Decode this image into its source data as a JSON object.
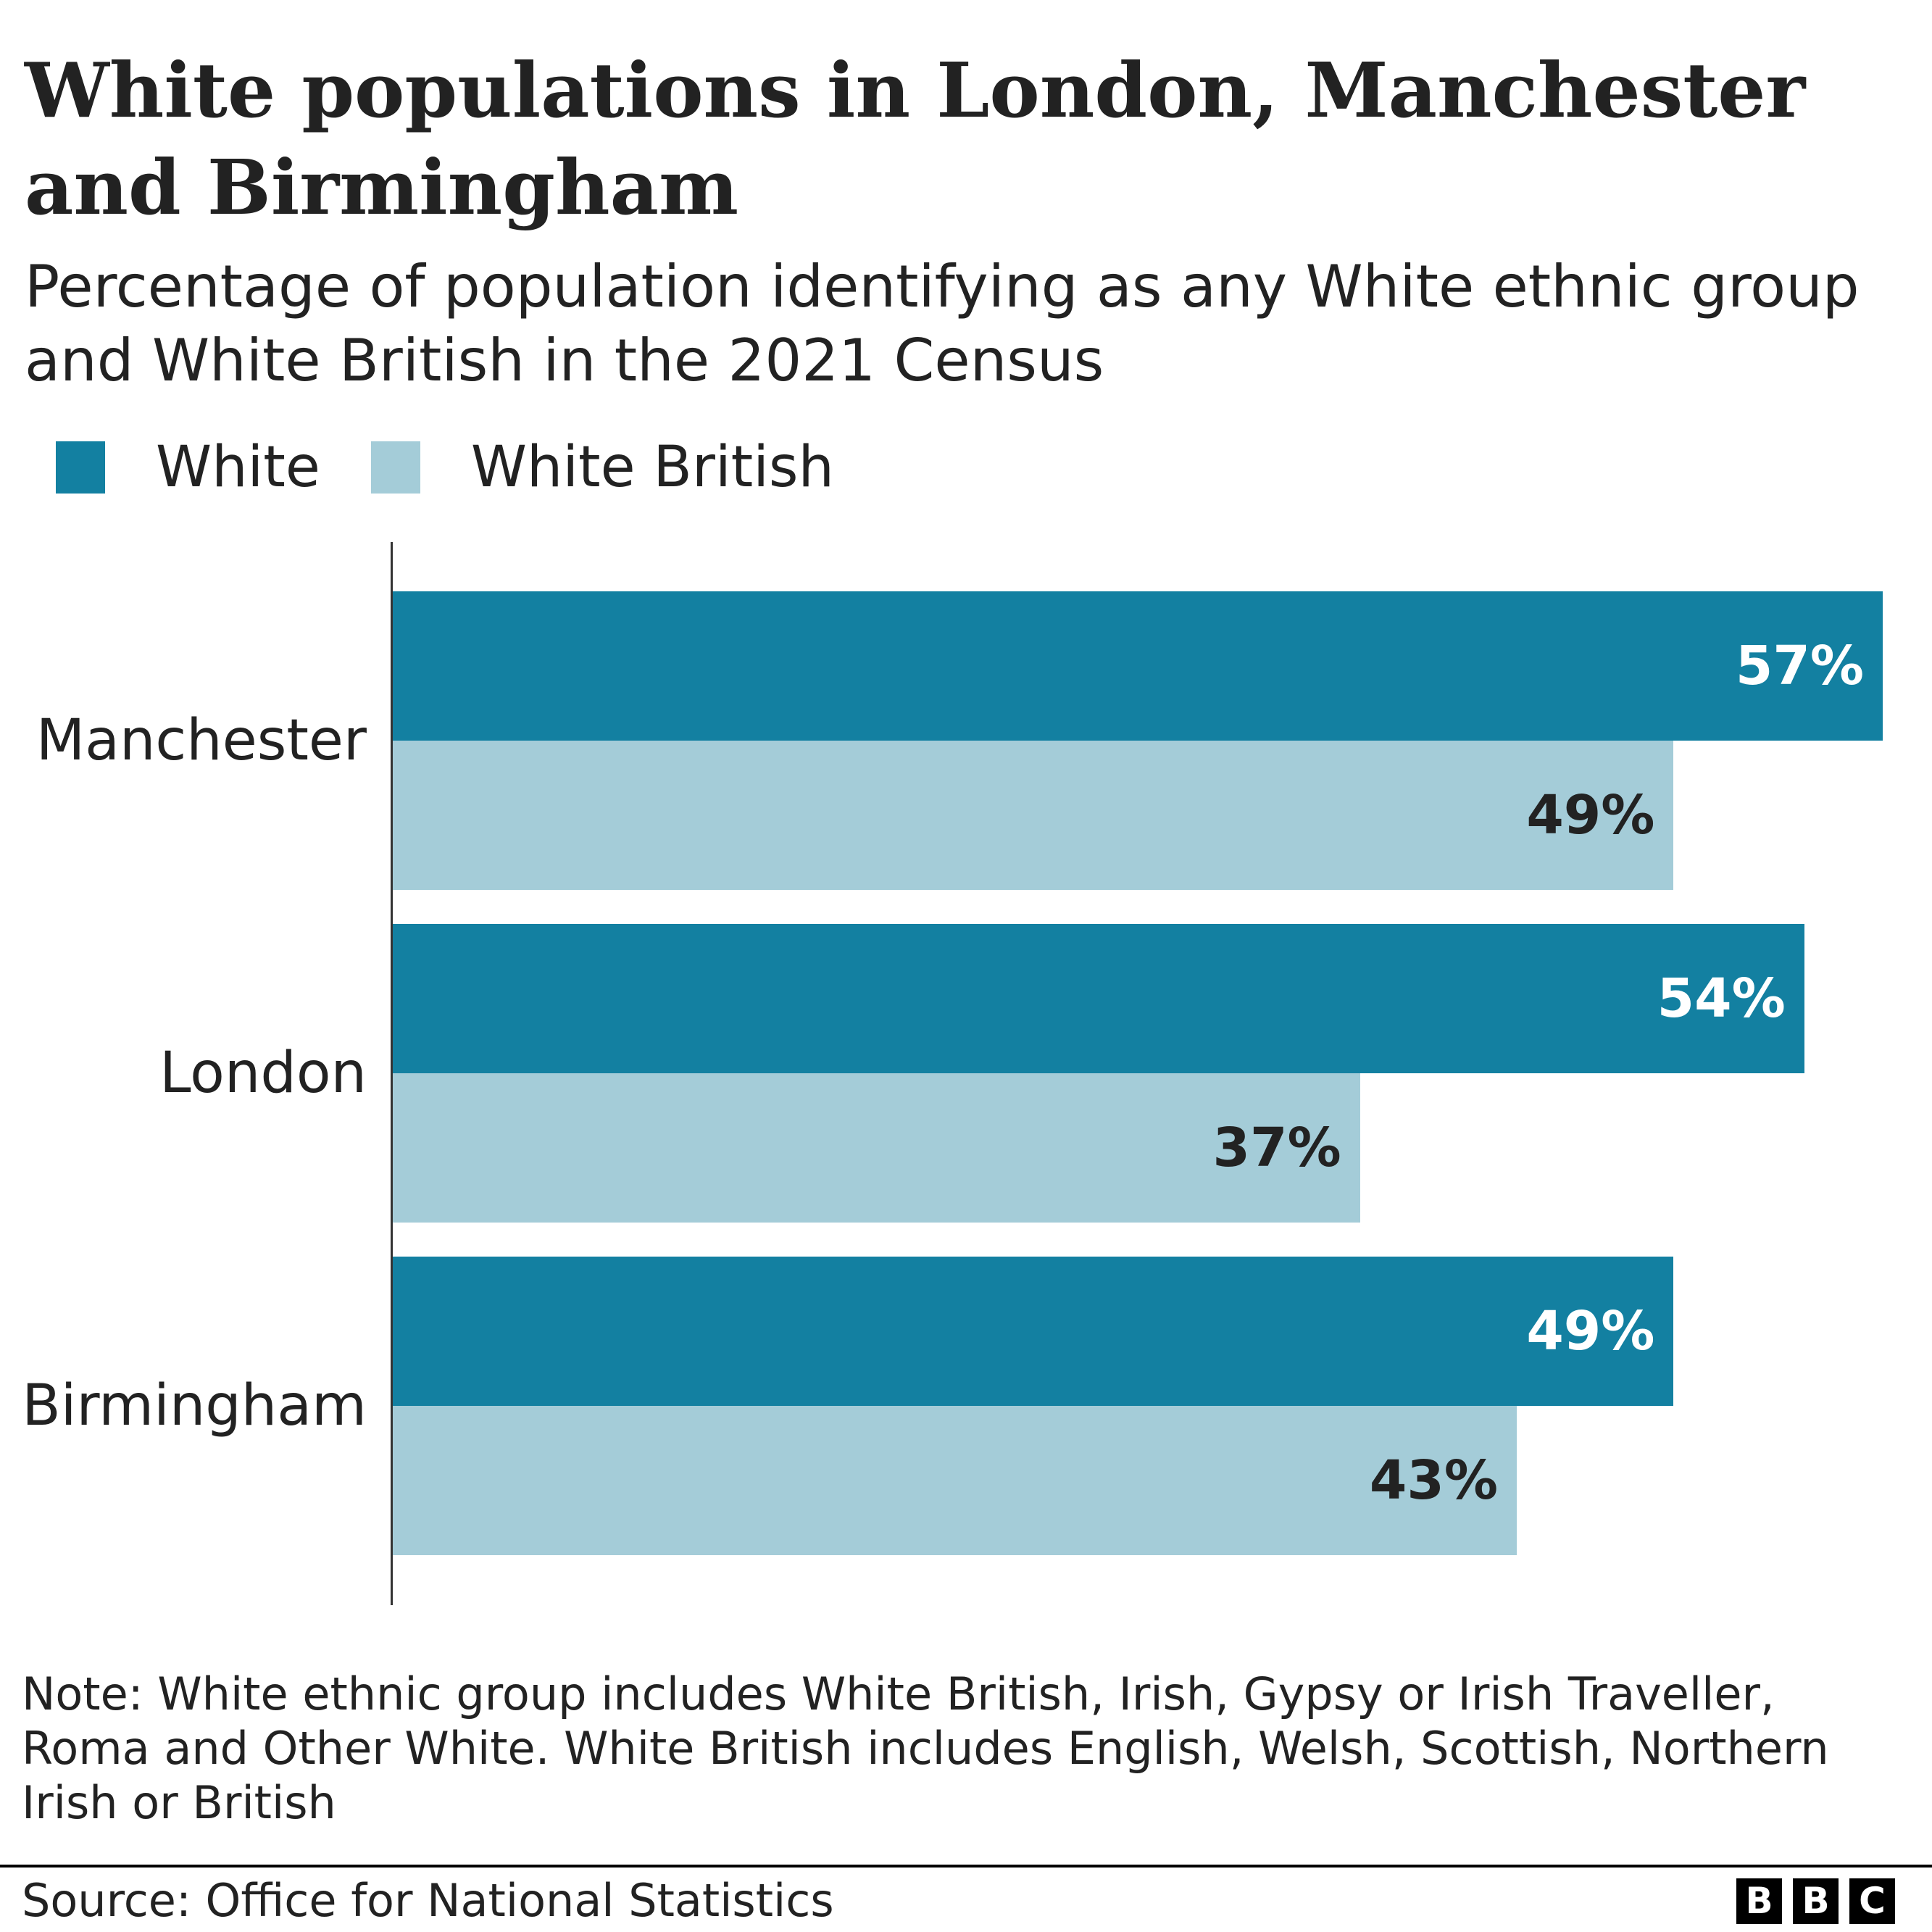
{
  "chart_data": {
    "type": "bar",
    "orientation": "horizontal",
    "title": "White populations in London, Manchester and Birmingham",
    "subtitle": "Percentage of population identifying as any White ethnic group and White British in the 2021 Census",
    "categories": [
      "Manchester",
      "London",
      "Birmingham"
    ],
    "series": [
      {
        "name": "White",
        "color": "#1380a1",
        "label_color": "#ffffff",
        "values": [
          57,
          54,
          49
        ],
        "labels": [
          "57%",
          "54%",
          "49%"
        ]
      },
      {
        "name": "White British",
        "color": "#a4ccd8",
        "label_color": "#222222",
        "values": [
          49,
          37,
          43
        ],
        "labels": [
          "49%",
          "37%",
          "43%"
        ]
      }
    ],
    "xlim": [
      0,
      57
    ],
    "grid": false,
    "legend": "top-left",
    "note": "Note: White ethnic group includes White British, Irish, Gypsy or Irish Traveller, Roma and Other White. White British includes English, Welsh, Scottish, Northern Irish or British",
    "source": "Source: Office for National Statistics"
  },
  "logo": {
    "text": "BBC",
    "letters": [
      "B",
      "B",
      "C"
    ]
  }
}
